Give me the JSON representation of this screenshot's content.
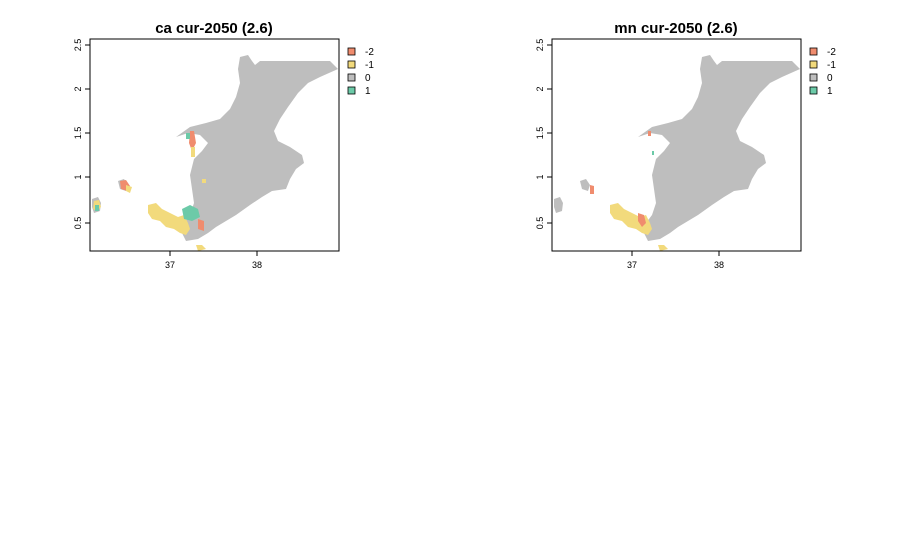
{
  "legend_colors": {
    "-2": "#f08c6e",
    "-1": "#f2da7c",
    "0": "#bebebe",
    "1": "#6ccaa8"
  },
  "panels": [
    {
      "title": "ca cur-2050 (2.6)",
      "x_ticks": [
        "37",
        "38"
      ],
      "y_ticks": [
        "0.5",
        "1",
        "1.5",
        "2",
        "2.5"
      ],
      "legend": [
        {
          "label": "-2",
          "color": "#f08c6e"
        },
        {
          "label": "-1",
          "color": "#f2da7c"
        },
        {
          "label": "0",
          "color": "#bebebe"
        },
        {
          "label": "1",
          "color": "#6ccaa8"
        }
      ]
    },
    {
      "title": "mn cur-2050 (2.6)",
      "x_ticks": [
        "37",
        "38"
      ],
      "y_ticks": [
        "0.5",
        "1",
        "1.5",
        "2",
        "2.5"
      ],
      "legend": [
        {
          "label": "-2",
          "color": "#f08c6e"
        },
        {
          "label": "-1",
          "color": "#f2da7c"
        },
        {
          "label": "0",
          "color": "#bebebe"
        },
        {
          "label": "1",
          "color": "#6ccaa8"
        }
      ]
    }
  ]
}
